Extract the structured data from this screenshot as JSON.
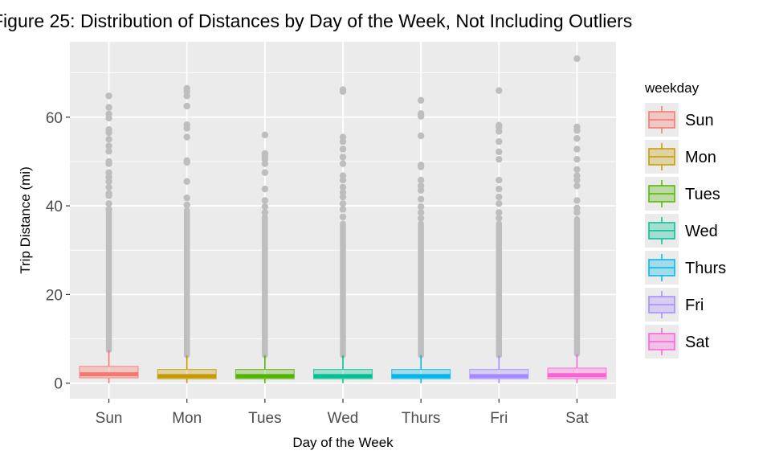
{
  "chart_data": {
    "type": "box",
    "title": "Figure 25: Distribution of Distances by Day of the Week, Not Including Outliers",
    "xlabel": "Day of the Week",
    "ylabel": "Trip Distance (mi)",
    "ylim": [
      -3.5,
      77
    ],
    "yticks": [
      0,
      20,
      40,
      60
    ],
    "grid": true,
    "legend_title": "weekday",
    "legend_position": "right",
    "categories": [
      "Sun",
      "Mon",
      "Tues",
      "Wed",
      "Thurs",
      "Fri",
      "Sat"
    ],
    "colors": [
      "#F8766D",
      "#C49A00",
      "#53B400",
      "#00C094",
      "#00B6EB",
      "#A58AFF",
      "#FB61D7"
    ],
    "outlier_color": "#bebebe",
    "boxes": [
      {
        "day": "Sun",
        "whisker_low": 0,
        "q1": 1.2,
        "median": 2.0,
        "q3": 3.8,
        "whisker_high": 7.5,
        "outliers_dense_from": 7.5,
        "outliers_dense_to": 38.5,
        "outliers": [
          39.2,
          40.5,
          42.3,
          42.8,
          44.2,
          45.5,
          46.5,
          47.5,
          49.5,
          50.0,
          52.3,
          53.5,
          55.0,
          56.5,
          57.2,
          59.8,
          60.7,
          62.2,
          64.8
        ]
      },
      {
        "day": "Mon",
        "whisker_low": 0,
        "q1": 1.0,
        "median": 1.6,
        "q3": 3.1,
        "whisker_high": 6.3,
        "outliers_dense_from": 6.3,
        "outliers_dense_to": 39.0,
        "outliers": [
          40.2,
          41.8,
          45.5,
          49.8,
          50.2,
          55.5,
          57.5,
          58.3,
          62.5,
          64.8,
          65.8,
          66.5
        ]
      },
      {
        "day": "Tues",
        "whisker_low": 0,
        "q1": 1.0,
        "median": 1.6,
        "q3": 3.1,
        "whisker_high": 6.3,
        "outliers_dense_from": 6.3,
        "outliers_dense_to": 37.5,
        "outliers": [
          38.5,
          39.8,
          41.2,
          43.8,
          47.5,
          49.5,
          50.5,
          51.2,
          51.8,
          56.0
        ]
      },
      {
        "day": "Wed",
        "whisker_low": 0,
        "q1": 1.0,
        "median": 1.6,
        "q3": 3.1,
        "whisker_high": 6.3,
        "outliers_dense_from": 6.3,
        "outliers_dense_to": 36.0,
        "outliers": [
          37.5,
          39.2,
          40.5,
          42.0,
          43.0,
          44.2,
          45.8,
          46.8,
          49.5,
          51.0,
          52.8,
          54.5,
          55.5,
          65.8,
          66.2
        ]
      },
      {
        "day": "Thurs",
        "whisker_low": 0,
        "q1": 1.0,
        "median": 1.6,
        "q3": 3.1,
        "whisker_high": 6.3,
        "outliers_dense_from": 6.3,
        "outliers_dense_to": 36.0,
        "outliers": [
          37.2,
          38.5,
          39.8,
          41.5,
          43.5,
          44.5,
          45.8,
          48.8,
          49.2,
          55.8,
          60.2,
          60.8,
          63.8
        ]
      },
      {
        "day": "Fri",
        "whisker_low": 0,
        "q1": 1.0,
        "median": 1.6,
        "q3": 3.1,
        "whisker_high": 6.3,
        "outliers_dense_from": 6.3,
        "outliers_dense_to": 36.0,
        "outliers": [
          37.2,
          38.5,
          40.5,
          42.0,
          43.8,
          45.8,
          50.5,
          52.2,
          54.5,
          56.8,
          57.8,
          58.2,
          66.0
        ]
      },
      {
        "day": "Sat",
        "whisker_low": 0,
        "q1": 1.0,
        "median": 1.8,
        "q3": 3.4,
        "whisker_high": 6.6,
        "outliers_dense_from": 6.6,
        "outliers_dense_to": 37.0,
        "outliers": [
          38.5,
          39.5,
          41.2,
          44.5,
          45.8,
          46.8,
          48.2,
          50.5,
          52.8,
          55.2,
          57.0,
          57.8,
          73.2
        ]
      }
    ]
  }
}
